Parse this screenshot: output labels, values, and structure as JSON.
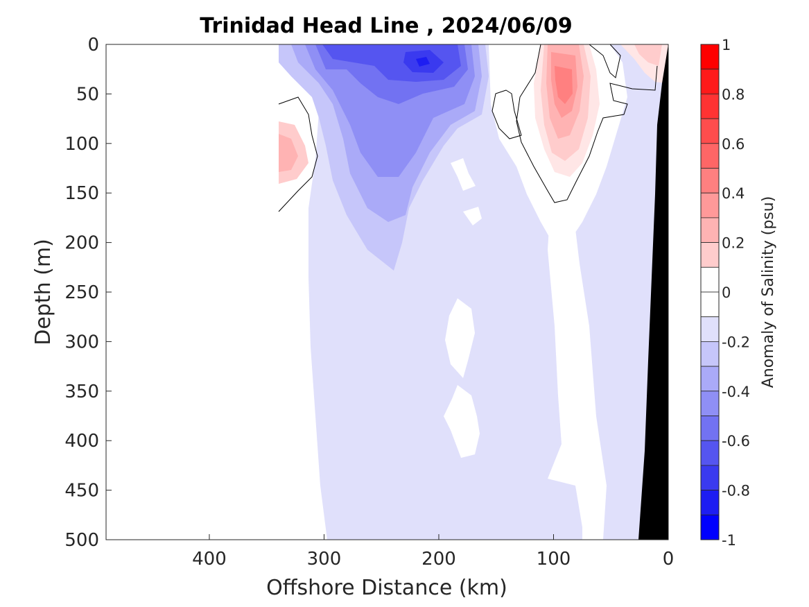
{
  "chart_data": {
    "type": "heatmap",
    "title": "Trinidad Head Line , 2024/06/09",
    "xlabel": "Offshore Distance (km)",
    "ylabel": "Depth (m)",
    "xlim": [
      490,
      0
    ],
    "ylim": [
      0,
      500
    ],
    "x_reversed": true,
    "y_reversed": true,
    "x_ticks": [
      "400",
      "300",
      "200",
      "100",
      "0"
    ],
    "y_ticks": [
      "0",
      "50",
      "100",
      "150",
      "200",
      "250",
      "300",
      "350",
      "400",
      "450",
      "500"
    ],
    "grid": false,
    "colorbar": {
      "label": "Anomaly of Salinity (psu)",
      "min": -1,
      "max": 1,
      "step": 0.1,
      "tick_labels": [
        "1",
        "0.8",
        "0.6",
        "0.4",
        "0.2",
        "0",
        "-0.2",
        "-0.4",
        "-0.6",
        "-0.8",
        "-1"
      ],
      "levels": [
        {
          "range": [
            0.9,
            1.0
          ],
          "color": "#ff0000"
        },
        {
          "range": [
            0.8,
            0.9
          ],
          "color": "#ff1a1a"
        },
        {
          "range": [
            0.7,
            0.8
          ],
          "color": "#ff3333"
        },
        {
          "range": [
            0.6,
            0.7
          ],
          "color": "#ff4d4d"
        },
        {
          "range": [
            0.5,
            0.6
          ],
          "color": "#ff6666"
        },
        {
          "range": [
            0.4,
            0.5
          ],
          "color": "#ff8080"
        },
        {
          "range": [
            0.3,
            0.4
          ],
          "color": "#ff9999"
        },
        {
          "range": [
            0.2,
            0.3
          ],
          "color": "#ffb3b3"
        },
        {
          "range": [
            0.1,
            0.2
          ],
          "color": "#ffcccc"
        },
        {
          "range": [
            0.0,
            0.1
          ],
          "color": "#ffffff"
        },
        {
          "range": [
            -0.1,
            0.0
          ],
          "color": "#ffffff"
        },
        {
          "range": [
            -0.2,
            -0.1
          ],
          "color": "#e0e0fb"
        },
        {
          "range": [
            -0.3,
            -0.2
          ],
          "color": "#c6c6fa"
        },
        {
          "range": [
            -0.4,
            -0.3
          ],
          "color": "#aaaaf8"
        },
        {
          "range": [
            -0.5,
            -0.4
          ],
          "color": "#8f8ff5"
        },
        {
          "range": [
            -0.6,
            -0.5
          ],
          "color": "#7272f2"
        },
        {
          "range": [
            -0.7,
            -0.6
          ],
          "color": "#5555f0"
        },
        {
          "range": [
            -0.8,
            -0.7
          ],
          "color": "#3a3aef"
        },
        {
          "range": [
            -0.9,
            -0.8
          ],
          "color": "#1d1df2"
        },
        {
          "range": [
            -1.0,
            -0.9
          ],
          "color": "#0000ff"
        }
      ]
    },
    "sampled_range_km": [
      0,
      340
    ],
    "zero_contour": "black lines",
    "seafloor_color": "#000000",
    "anomaly_regions": [
      {
        "anomaly": -0.15,
        "km": [
          300,
          0
        ],
        "depth": [
          0,
          500
        ]
      },
      {
        "anomaly": -0.25,
        "km": [
          340,
          160
        ],
        "depth": [
          0,
          230
        ]
      },
      {
        "anomaly": -0.35,
        "km": [
          330,
          170
        ],
        "depth": [
          0,
          200
        ]
      },
      {
        "anomaly": -0.45,
        "km": [
          300,
          180
        ],
        "depth": [
          0,
          140
        ]
      },
      {
        "anomaly": -0.55,
        "km": [
          290,
          180
        ],
        "depth": [
          0,
          70
        ]
      },
      {
        "anomaly": -0.65,
        "km": [
          290,
          190
        ],
        "depth": [
          0,
          40
        ]
      },
      {
        "anomaly": -0.75,
        "km": [
          230,
          210
        ],
        "depth": [
          0,
          20
        ]
      },
      {
        "anomaly": 0.15,
        "km": [
          340,
          320
        ],
        "depth": [
          80,
          140
        ]
      },
      {
        "anomaly": 0.15,
        "km": [
          110,
          70
        ],
        "depth": [
          0,
          130
        ]
      },
      {
        "anomaly": 0.25,
        "km": [
          100,
          80
        ],
        "depth": [
          10,
          110
        ]
      },
      {
        "anomaly": 0.35,
        "km": [
          100,
          85
        ],
        "depth": [
          30,
          80
        ]
      },
      {
        "anomaly": 0.15,
        "km": [
          30,
          0
        ],
        "depth": [
          0,
          40
        ]
      }
    ]
  }
}
